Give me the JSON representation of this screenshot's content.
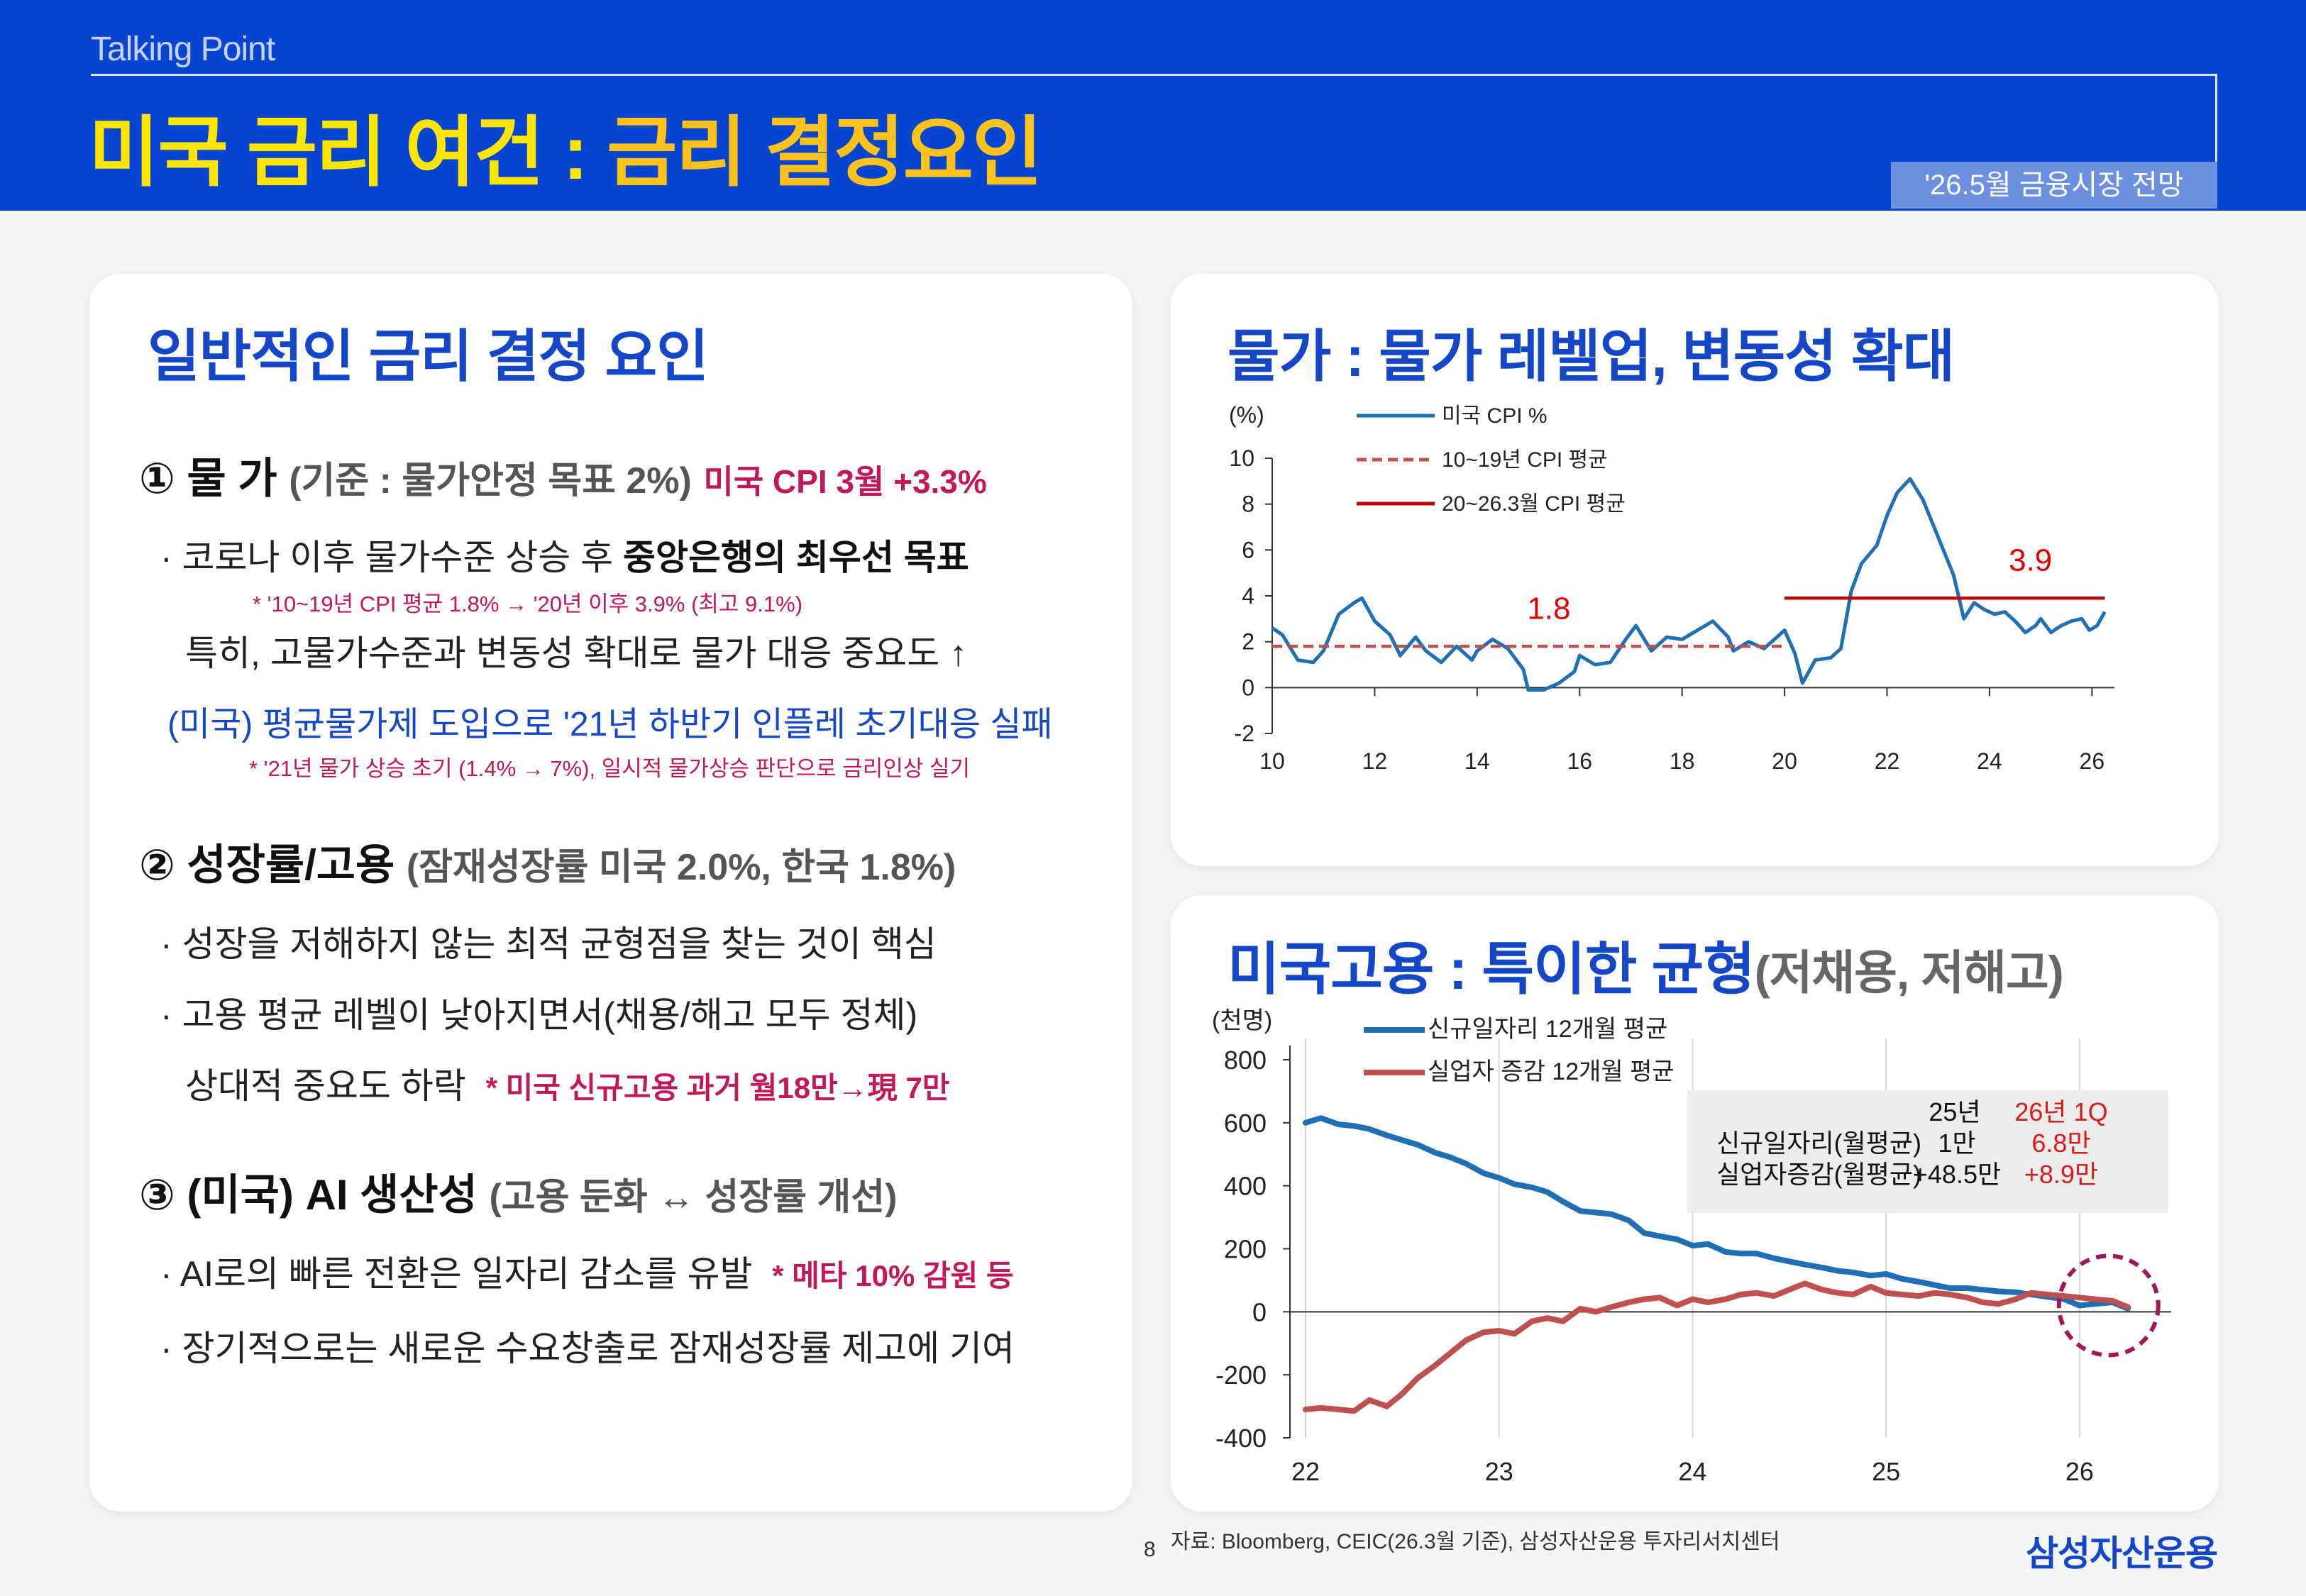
{
  "header": {
    "kicker": "Talking Point",
    "title_part1": "미국 금리 여건 : ",
    "title_part2": "금리 결정요인",
    "tagline": "'26.5월 금융시장 전망"
  },
  "left": {
    "heading": "일반적인 금리 결정 요인",
    "s1": {
      "title": "① 물 가",
      "sub": "(기준 : 물가안정 목표 2%)",
      "mark": "미국 CPI 3월  +3.3%",
      "b1_pre": "· 코로나 이후 물가수준 상승 후 ",
      "b1_bold": "중앙은행의 최우선 목표",
      "n1": "* '10~19년 CPI 평균 1.8% → '20년 이후 3.9% (최고 9.1%)",
      "b2": "특히, 고물가수준과 변동성 확대로 물가 대응 중요도 ↑",
      "b3": "(미국) 평균물가제 도입으로 '21년 하반기 인플레 초기대응 실패",
      "n2": "* '21년 물가 상승 초기 (1.4% → 7%), 일시적 물가상승 판단으로 금리인상 실기"
    },
    "s2": {
      "title": "② 성장률/고용",
      "sub": "(잠재성장률 미국 2.0%, 한국 1.8%)",
      "b1": "· 성장을 저해하지 않는 최적 균형점을 찾는 것이 핵심",
      "b2": "· 고용 평균 레벨이 낮아지면서(채용/해고 모두 정체)",
      "b3": "상대적 중요도 하락",
      "n": "* 미국 신규고용 과거 월18만→現 7만"
    },
    "s3": {
      "title": "③ (미국) AI 생산성",
      "sub": "(고용 둔화 ↔ 성장률 개선)",
      "b1": "· AI로의 빠른 전환은 일자리 감소를 유발",
      "n": "* 메타 10% 감원 등",
      "b2": "· 장기적으로는 새로운 수요창출로 잠재성장률 제고에 기여"
    }
  },
  "right_top": {
    "heading": "물가 : 물가 레벨업, 변동성 확대"
  },
  "right_bottom": {
    "heading": "미국고용 : 특이한 균형",
    "heading_sub": "(저채용, 저해고)",
    "table": {
      "col1": "25년",
      "col2": "26년 1Q",
      "rows": [
        {
          "label": "신규일자리(월평균)",
          "v1": "1만",
          "v2": "6.8만"
        },
        {
          "label": "실업자증감(월평균)",
          "v1": "+48.5만",
          "v2": "+8.9만"
        }
      ]
    }
  },
  "footer": {
    "source": "자료: Bloomberg, CEIC(26.3월 기준), 삼성자산운용 투자리서치센터",
    "page": "8",
    "logo": "삼성자산운용"
  },
  "chart_data": [
    {
      "type": "line",
      "ylabel": "(%)",
      "ylim": [
        -2,
        10
      ],
      "yticks": [
        -2,
        0,
        2,
        4,
        6,
        8,
        10
      ],
      "xlim": [
        2010,
        2026.3
      ],
      "xticks": [
        {
          "v": 2010,
          "label": "10"
        },
        {
          "v": 2012,
          "label": "12"
        },
        {
          "v": 2014,
          "label": "14"
        },
        {
          "v": 2016,
          "label": "16"
        },
        {
          "v": 2018,
          "label": "18"
        },
        {
          "v": 2020,
          "label": "20"
        },
        {
          "v": 2022,
          "label": "22"
        },
        {
          "v": 2024,
          "label": "24"
        },
        {
          "v": 2026,
          "label": "26"
        }
      ],
      "series": [
        {
          "name": "미국 CPI %",
          "color": "#1f6fb5",
          "style": "solid",
          "points": [
            [
              2010.0,
              2.6
            ],
            [
              2010.2,
              2.3
            ],
            [
              2010.5,
              1.2
            ],
            [
              2010.8,
              1.1
            ],
            [
              2011.0,
              1.6
            ],
            [
              2011.3,
              3.2
            ],
            [
              2011.6,
              3.7
            ],
            [
              2011.75,
              3.9
            ],
            [
              2012.0,
              2.9
            ],
            [
              2012.3,
              2.3
            ],
            [
              2012.5,
              1.4
            ],
            [
              2012.8,
              2.2
            ],
            [
              2013.0,
              1.6
            ],
            [
              2013.3,
              1.1
            ],
            [
              2013.6,
              1.8
            ],
            [
              2013.9,
              1.2
            ],
            [
              2014.0,
              1.6
            ],
            [
              2014.3,
              2.1
            ],
            [
              2014.6,
              1.7
            ],
            [
              2014.9,
              0.8
            ],
            [
              2015.0,
              -0.1
            ],
            [
              2015.3,
              -0.1
            ],
            [
              2015.6,
              0.2
            ],
            [
              2015.9,
              0.7
            ],
            [
              2016.0,
              1.4
            ],
            [
              2016.3,
              1.0
            ],
            [
              2016.6,
              1.1
            ],
            [
              2016.9,
              2.1
            ],
            [
              2017.1,
              2.7
            ],
            [
              2017.4,
              1.6
            ],
            [
              2017.7,
              2.2
            ],
            [
              2018.0,
              2.1
            ],
            [
              2018.3,
              2.5
            ],
            [
              2018.6,
              2.9
            ],
            [
              2018.9,
              2.2
            ],
            [
              2019.0,
              1.6
            ],
            [
              2019.3,
              2.0
            ],
            [
              2019.6,
              1.7
            ],
            [
              2019.9,
              2.3
            ],
            [
              2020.0,
              2.5
            ],
            [
              2020.2,
              1.5
            ],
            [
              2020.35,
              0.2
            ],
            [
              2020.6,
              1.2
            ],
            [
              2020.9,
              1.3
            ],
            [
              2021.1,
              1.7
            ],
            [
              2021.3,
              4.2
            ],
            [
              2021.5,
              5.4
            ],
            [
              2021.8,
              6.2
            ],
            [
              2022.0,
              7.5
            ],
            [
              2022.2,
              8.5
            ],
            [
              2022.45,
              9.1
            ],
            [
              2022.7,
              8.2
            ],
            [
              2022.9,
              7.1
            ],
            [
              2023.1,
              6.0
            ],
            [
              2023.3,
              4.9
            ],
            [
              2023.5,
              3.0
            ],
            [
              2023.7,
              3.7
            ],
            [
              2023.9,
              3.4
            ],
            [
              2024.1,
              3.2
            ],
            [
              2024.3,
              3.3
            ],
            [
              2024.5,
              2.9
            ],
            [
              2024.7,
              2.4
            ],
            [
              2024.9,
              2.7
            ],
            [
              2025.0,
              3.0
            ],
            [
              2025.2,
              2.4
            ],
            [
              2025.4,
              2.7
            ],
            [
              2025.6,
              2.9
            ],
            [
              2025.8,
              3.0
            ],
            [
              2025.95,
              2.5
            ],
            [
              2026.1,
              2.7
            ],
            [
              2026.25,
              3.3
            ]
          ]
        },
        {
          "name": "10~19년 CPI 평균",
          "color": "#c0504d",
          "style": "dashed",
          "points": [
            [
              2010.0,
              1.8
            ],
            [
              2020.0,
              1.8
            ]
          ]
        },
        {
          "name": "20~26.3월 CPI 평균",
          "color": "#c00000",
          "style": "solid",
          "points": [
            [
              2020.0,
              3.9
            ],
            [
              2026.25,
              3.9
            ]
          ]
        }
      ],
      "annotations": [
        {
          "text": "1.8",
          "x": 2015.4,
          "y": 3.0,
          "color": "#e00000"
        },
        {
          "text": "3.9",
          "x": 2024.8,
          "y": 5.1,
          "color": "#e00000"
        }
      ],
      "legend": "top-left"
    },
    {
      "type": "line",
      "ylabel": "(천명)",
      "ylim": [
        -400,
        800
      ],
      "yticks": [
        -400,
        -200,
        0,
        200,
        400,
        600,
        800
      ],
      "xlim": [
        2022.0,
        2026.4
      ],
      "xticks": [
        {
          "v": 2022,
          "label": "22"
        },
        {
          "v": 2023,
          "label": "23"
        },
        {
          "v": 2024,
          "label": "24"
        },
        {
          "v": 2025,
          "label": "25"
        },
        {
          "v": 2026,
          "label": "26"
        }
      ],
      "series": [
        {
          "name": "신규일자리 12개월 평균",
          "color": "#1f6fb5",
          "points": [
            [
              2022.0,
              600
            ],
            [
              2022.08,
              615
            ],
            [
              2022.17,
              595
            ],
            [
              2022.25,
              590
            ],
            [
              2022.33,
              580
            ],
            [
              2022.42,
              560
            ],
            [
              2022.5,
              545
            ],
            [
              2022.58,
              530
            ],
            [
              2022.67,
              505
            ],
            [
              2022.75,
              490
            ],
            [
              2022.83,
              470
            ],
            [
              2022.92,
              440
            ],
            [
              2023.0,
              425
            ],
            [
              2023.08,
              405
            ],
            [
              2023.17,
              395
            ],
            [
              2023.25,
              380
            ],
            [
              2023.33,
              350
            ],
            [
              2023.42,
              320
            ],
            [
              2023.5,
              315
            ],
            [
              2023.58,
              310
            ],
            [
              2023.67,
              290
            ],
            [
              2023.75,
              250
            ],
            [
              2023.83,
              240
            ],
            [
              2023.92,
              230
            ],
            [
              2024.0,
              210
            ],
            [
              2024.08,
              215
            ],
            [
              2024.17,
              190
            ],
            [
              2024.25,
              185
            ],
            [
              2024.33,
              185
            ],
            [
              2024.42,
              170
            ],
            [
              2024.5,
              160
            ],
            [
              2024.58,
              150
            ],
            [
              2024.67,
              140
            ],
            [
              2024.75,
              130
            ],
            [
              2024.83,
              125
            ],
            [
              2024.92,
              115
            ],
            [
              2025.0,
              120
            ],
            [
              2025.08,
              105
            ],
            [
              2025.17,
              95
            ],
            [
              2025.25,
              85
            ],
            [
              2025.33,
              75
            ],
            [
              2025.42,
              75
            ],
            [
              2025.5,
              70
            ],
            [
              2025.58,
              65
            ],
            [
              2025.67,
              62
            ],
            [
              2025.75,
              55
            ],
            [
              2025.83,
              48
            ],
            [
              2025.92,
              40
            ],
            [
              2026.0,
              20
            ],
            [
              2026.08,
              25
            ],
            [
              2026.17,
              30
            ],
            [
              2026.25,
              10
            ]
          ]
        },
        {
          "name": "실업자 증감 12개월 평균",
          "color": "#c0504d",
          "points": [
            [
              2022.0,
              -310
            ],
            [
              2022.08,
              -305
            ],
            [
              2022.17,
              -310
            ],
            [
              2022.25,
              -315
            ],
            [
              2022.33,
              -280
            ],
            [
              2022.42,
              -300
            ],
            [
              2022.5,
              -260
            ],
            [
              2022.58,
              -210
            ],
            [
              2022.67,
              -170
            ],
            [
              2022.75,
              -130
            ],
            [
              2022.83,
              -90
            ],
            [
              2022.92,
              -65
            ],
            [
              2023.0,
              -60
            ],
            [
              2023.08,
              -70
            ],
            [
              2023.17,
              -30
            ],
            [
              2023.25,
              -20
            ],
            [
              2023.33,
              -30
            ],
            [
              2023.42,
              10
            ],
            [
              2023.5,
              0
            ],
            [
              2023.58,
              15
            ],
            [
              2023.67,
              30
            ],
            [
              2023.75,
              40
            ],
            [
              2023.83,
              45
            ],
            [
              2023.92,
              20
            ],
            [
              2024.0,
              40
            ],
            [
              2024.08,
              30
            ],
            [
              2024.17,
              40
            ],
            [
              2024.25,
              55
            ],
            [
              2024.33,
              60
            ],
            [
              2024.42,
              50
            ],
            [
              2024.5,
              70
            ],
            [
              2024.58,
              90
            ],
            [
              2024.67,
              70
            ],
            [
              2024.75,
              60
            ],
            [
              2024.83,
              55
            ],
            [
              2024.92,
              80
            ],
            [
              2025.0,
              60
            ],
            [
              2025.08,
              55
            ],
            [
              2025.17,
              50
            ],
            [
              2025.25,
              60
            ],
            [
              2025.33,
              55
            ],
            [
              2025.42,
              45
            ],
            [
              2025.5,
              30
            ],
            [
              2025.58,
              25
            ],
            [
              2025.67,
              40
            ],
            [
              2025.75,
              60
            ],
            [
              2025.83,
              55
            ],
            [
              2025.92,
              50
            ],
            [
              2026.0,
              45
            ],
            [
              2026.08,
              40
            ],
            [
              2026.17,
              35
            ],
            [
              2026.25,
              15
            ]
          ]
        }
      ],
      "legend": "top-left"
    }
  ]
}
